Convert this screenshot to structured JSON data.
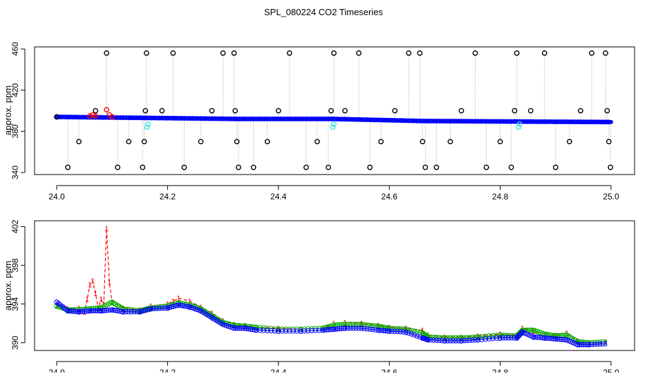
{
  "title": "SPL_080224  CO2 Timeseries",
  "colors": {
    "black": "#000000",
    "red": "#ff0000",
    "green": "#00b000",
    "blue": "#0000ff",
    "cyan": "#40e0e0",
    "grey": "#9a9a9a"
  },
  "chart_data": [
    {
      "type": "scatter",
      "ylabel": "approx. ppm",
      "xlim": [
        23.995,
        25.04
      ],
      "ylim": [
        338,
        462
      ],
      "xticks": [
        "24.0",
        "24.2",
        "24.4",
        "24.6",
        "24.8",
        "25.0"
      ],
      "yticks": [
        "340",
        "380",
        "420",
        "460"
      ],
      "base_level": [
        [
          24.0,
          394
        ],
        [
          24.33,
          392
        ],
        [
          24.5,
          392
        ],
        [
          24.66,
          390
        ],
        [
          25.0,
          389
        ]
      ],
      "series": [
        {
          "symbol": "o",
          "color": "black",
          "points": [
            [
              24.0,
              394
            ],
            [
              24.02,
              345
            ],
            [
              24.04,
              370
            ],
            [
              24.07,
              400
            ],
            [
              24.09,
              456
            ],
            [
              24.11,
              345
            ],
            [
              24.13,
              370
            ],
            [
              24.155,
              345
            ],
            [
              24.158,
              370
            ],
            [
              24.16,
              400
            ],
            [
              24.162,
              456
            ],
            [
              24.19,
              400
            ],
            [
              24.21,
              456
            ],
            [
              24.23,
              345
            ],
            [
              24.26,
              370
            ],
            [
              24.28,
              400
            ],
            [
              24.3,
              456
            ],
            [
              24.32,
              456
            ],
            [
              24.322,
              400
            ],
            [
              24.325,
              370
            ],
            [
              24.328,
              345
            ],
            [
              24.355,
              345
            ],
            [
              24.38,
              370
            ],
            [
              24.4,
              400
            ],
            [
              24.42,
              456
            ],
            [
              24.45,
              345
            ],
            [
              24.47,
              370
            ],
            [
              24.49,
              345
            ],
            [
              24.495,
              400
            ],
            [
              24.5,
              456
            ],
            [
              24.52,
              400
            ],
            [
              24.545,
              456
            ],
            [
              24.565,
              345
            ],
            [
              24.585,
              370
            ],
            [
              24.61,
              400
            ],
            [
              24.635,
              456
            ],
            [
              24.655,
              456
            ],
            [
              24.66,
              370
            ],
            [
              24.665,
              345
            ],
            [
              24.685,
              345
            ],
            [
              24.71,
              370
            ],
            [
              24.73,
              400
            ],
            [
              24.755,
              456
            ],
            [
              24.775,
              345
            ],
            [
              24.8,
              370
            ],
            [
              24.82,
              345
            ],
            [
              24.826,
              400
            ],
            [
              24.83,
              456
            ],
            [
              24.855,
              400
            ],
            [
              24.88,
              456
            ],
            [
              24.9,
              345
            ],
            [
              24.925,
              370
            ],
            [
              24.945,
              400
            ],
            [
              24.965,
              456
            ],
            [
              24.99,
              456
            ],
            [
              24.993,
              400
            ],
            [
              24.996,
              370
            ],
            [
              24.999,
              345
            ]
          ]
        },
        {
          "symbol": "o",
          "color": "red",
          "points": [
            [
              24.06,
              395
            ],
            [
              24.065,
              396
            ],
            [
              24.07,
              395
            ],
            [
              24.09,
              401
            ],
            [
              24.095,
              396
            ],
            [
              24.1,
              394
            ]
          ]
        },
        {
          "symbol": "o",
          "color": "cyan",
          "points": [
            [
              24.163,
              384
            ],
            [
              24.165,
              387
            ],
            [
              24.498,
              384
            ],
            [
              24.5,
              387
            ],
            [
              24.833,
              384
            ],
            [
              24.835,
              387
            ]
          ]
        }
      ]
    },
    {
      "type": "line",
      "ylabel": "approx. ppm",
      "xlim": [
        23.995,
        25.04
      ],
      "ylim": [
        389.2,
        402.6
      ],
      "xticks": [
        "24.0",
        "24.2",
        "24.4",
        "24.6",
        "24.8",
        "25.0"
      ],
      "yticks": [
        "390",
        "394",
        "398",
        "402"
      ],
      "series": [
        {
          "symbol": "1",
          "color": "red",
          "points": [
            [
              24.0,
              393.9
            ],
            [
              24.02,
              393.5
            ],
            [
              24.04,
              393.6
            ],
            [
              24.05,
              393.2
            ],
            [
              24.055,
              394.5
            ],
            [
              24.06,
              396.0
            ],
            [
              24.065,
              396.4
            ],
            [
              24.07,
              395.1
            ],
            [
              24.075,
              393.5
            ],
            [
              24.08,
              394.5
            ],
            [
              24.085,
              394.0
            ],
            [
              24.09,
              401.8
            ],
            [
              24.095,
              396.3
            ],
            [
              24.1,
              394.2
            ],
            [
              24.12,
              393.6
            ],
            [
              24.15,
              393.4
            ],
            [
              24.17,
              393.8
            ],
            [
              24.2,
              394.0
            ],
            [
              24.21,
              394.3
            ],
            [
              24.22,
              394.6
            ],
            [
              24.24,
              394.3
            ],
            [
              24.26,
              393.7
            ],
            [
              24.28,
              393.1
            ],
            [
              24.3,
              392.3
            ],
            [
              24.32,
              391.9
            ],
            [
              24.34,
              391.8
            ],
            [
              24.36,
              391.6
            ],
            [
              24.4,
              391.5
            ],
            [
              24.44,
              391.4
            ],
            [
              24.48,
              391.5
            ],
            [
              24.5,
              392.0
            ],
            [
              24.52,
              392.1
            ],
            [
              24.55,
              392.0
            ],
            [
              24.58,
              391.8
            ],
            [
              24.6,
              391.6
            ],
            [
              24.63,
              391.5
            ],
            [
              24.66,
              391.3
            ],
            [
              24.67,
              390.8
            ],
            [
              24.7,
              390.6
            ],
            [
              24.73,
              390.6
            ],
            [
              24.76,
              390.7
            ],
            [
              24.8,
              390.9
            ],
            [
              24.83,
              390.8
            ],
            [
              24.84,
              391.5
            ],
            [
              24.86,
              391.2
            ],
            [
              24.88,
              390.9
            ],
            [
              24.9,
              390.8
            ],
            [
              24.92,
              391.0
            ],
            [
              24.94,
              390.2
            ],
            [
              24.96,
              390.0
            ],
            [
              24.99,
              390.1
            ]
          ]
        },
        {
          "symbol": "2",
          "color": "green",
          "points": [
            [
              24.0,
              393.8
            ],
            [
              24.02,
              393.4
            ],
            [
              24.04,
              393.4
            ],
            [
              24.06,
              393.5
            ],
            [
              24.08,
              393.6
            ],
            [
              24.1,
              394.2
            ],
            [
              24.12,
              393.5
            ],
            [
              24.15,
              393.3
            ],
            [
              24.17,
              393.6
            ],
            [
              24.2,
              393.8
            ],
            [
              24.22,
              394.1
            ],
            [
              24.24,
              393.9
            ],
            [
              24.26,
              393.5
            ],
            [
              24.28,
              392.8
            ],
            [
              24.3,
              392.1
            ],
            [
              24.32,
              391.8
            ],
            [
              24.34,
              391.7
            ],
            [
              24.36,
              391.6
            ],
            [
              24.4,
              391.4
            ],
            [
              24.44,
              391.4
            ],
            [
              24.48,
              391.5
            ],
            [
              24.5,
              391.8
            ],
            [
              24.52,
              391.9
            ],
            [
              24.55,
              391.9
            ],
            [
              24.58,
              391.7
            ],
            [
              24.6,
              391.5
            ],
            [
              24.63,
              391.4
            ],
            [
              24.66,
              391.0
            ],
            [
              24.67,
              390.6
            ],
            [
              24.7,
              390.5
            ],
            [
              24.73,
              390.5
            ],
            [
              24.76,
              390.6
            ],
            [
              24.8,
              390.8
            ],
            [
              24.83,
              390.7
            ],
            [
              24.84,
              391.3
            ],
            [
              24.86,
              391.3
            ],
            [
              24.88,
              390.9
            ],
            [
              24.9,
              390.7
            ],
            [
              24.92,
              390.8
            ],
            [
              24.94,
              390.1
            ],
            [
              24.96,
              390.0
            ],
            [
              24.99,
              390.1
            ]
          ]
        },
        {
          "symbol": "3",
          "color": "blue",
          "points": [
            [
              24.0,
              394.2
            ],
            [
              24.02,
              393.3
            ],
            [
              24.04,
              393.2
            ],
            [
              24.06,
              393.3
            ],
            [
              24.08,
              393.3
            ],
            [
              24.1,
              393.4
            ],
            [
              24.12,
              393.2
            ],
            [
              24.15,
              393.2
            ],
            [
              24.17,
              393.5
            ],
            [
              24.2,
              393.6
            ],
            [
              24.22,
              393.9
            ],
            [
              24.24,
              393.7
            ],
            [
              24.26,
              393.3
            ],
            [
              24.28,
              392.6
            ],
            [
              24.3,
              391.9
            ],
            [
              24.32,
              391.5
            ],
            [
              24.34,
              391.5
            ],
            [
              24.36,
              391.3
            ],
            [
              24.4,
              391.2
            ],
            [
              24.44,
              391.2
            ],
            [
              24.48,
              391.3
            ],
            [
              24.5,
              391.4
            ],
            [
              24.52,
              391.5
            ],
            [
              24.55,
              391.5
            ],
            [
              24.58,
              391.3
            ],
            [
              24.6,
              391.2
            ],
            [
              24.63,
              391.1
            ],
            [
              24.66,
              390.5
            ],
            [
              24.67,
              390.3
            ],
            [
              24.7,
              390.2
            ],
            [
              24.73,
              390.2
            ],
            [
              24.76,
              390.3
            ],
            [
              24.8,
              390.5
            ],
            [
              24.83,
              390.5
            ],
            [
              24.84,
              391.1
            ],
            [
              24.86,
              390.6
            ],
            [
              24.88,
              390.5
            ],
            [
              24.9,
              390.4
            ],
            [
              24.92,
              390.3
            ],
            [
              24.94,
              389.8
            ],
            [
              24.96,
              389.8
            ],
            [
              24.99,
              389.9
            ]
          ]
        }
      ]
    }
  ]
}
